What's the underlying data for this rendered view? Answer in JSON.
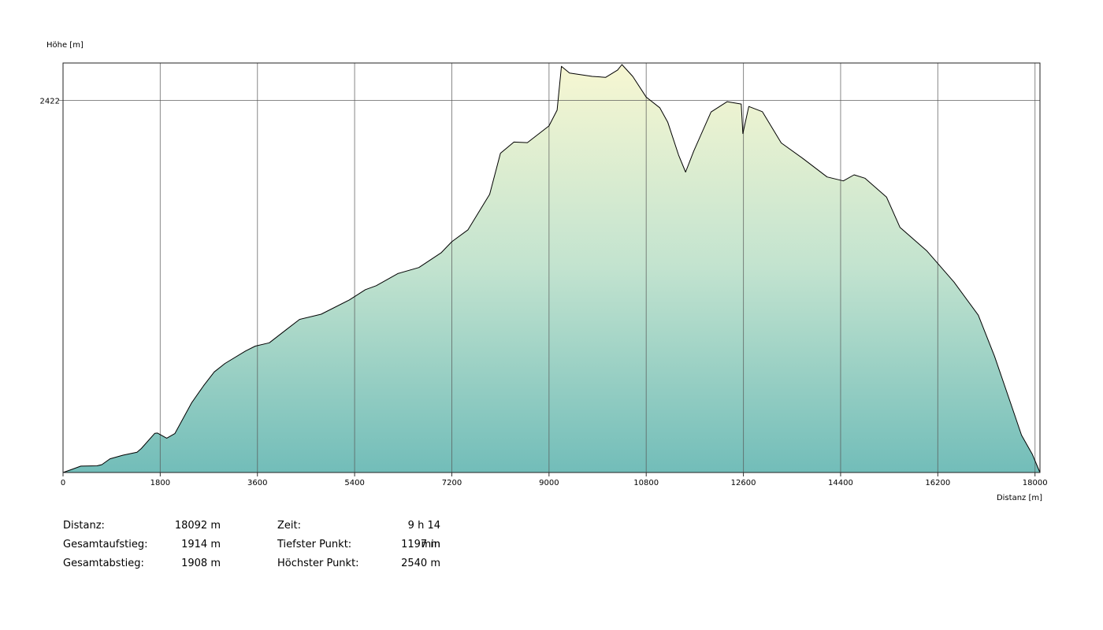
{
  "chart_data": {
    "type": "area",
    "ylabel": "Höhe [m]",
    "xlabel": "Distanz [m]",
    "x_ticks": [
      "0",
      "1800",
      "3600",
      "5400",
      "7200",
      "9000",
      "10800",
      "12600",
      "14400",
      "16200",
      "18000"
    ],
    "y_ticks": [
      "2422"
    ],
    "xlim": [
      0,
      18092
    ],
    "ylim": [
      1197,
      2540
    ],
    "grid": true,
    "colors": {
      "fill_top": "#f7f7d2",
      "fill_bottom": "#72bdb9",
      "line": "#000000",
      "grid": "#555555"
    },
    "points": [
      [
        0,
        1197
      ],
      [
        160,
        1207
      ],
      [
        330,
        1218
      ],
      [
        630,
        1219
      ],
      [
        720,
        1223
      ],
      [
        870,
        1242
      ],
      [
        1110,
        1254
      ],
      [
        1370,
        1264
      ],
      [
        1450,
        1276
      ],
      [
        1700,
        1326
      ],
      [
        1750,
        1327
      ],
      [
        1920,
        1310
      ],
      [
        2070,
        1325
      ],
      [
        2380,
        1426
      ],
      [
        2600,
        1482
      ],
      [
        2800,
        1528
      ],
      [
        3000,
        1556
      ],
      [
        3380,
        1597
      ],
      [
        3560,
        1613
      ],
      [
        3820,
        1624
      ],
      [
        4140,
        1668
      ],
      [
        4380,
        1701
      ],
      [
        4780,
        1718
      ],
      [
        5300,
        1765
      ],
      [
        5600,
        1799
      ],
      [
        5800,
        1812
      ],
      [
        6200,
        1852
      ],
      [
        6590,
        1872
      ],
      [
        7000,
        1920
      ],
      [
        7200,
        1957
      ],
      [
        7500,
        1996
      ],
      [
        7900,
        2113
      ],
      [
        8100,
        2248
      ],
      [
        8350,
        2285
      ],
      [
        8600,
        2283
      ],
      [
        9000,
        2338
      ],
      [
        9150,
        2390
      ],
      [
        9230,
        2534
      ],
      [
        9380,
        2512
      ],
      [
        9800,
        2501
      ],
      [
        10050,
        2498
      ],
      [
        10270,
        2522
      ],
      [
        10350,
        2540
      ],
      [
        10550,
        2501
      ],
      [
        10800,
        2433
      ],
      [
        11050,
        2398
      ],
      [
        11200,
        2350
      ],
      [
        11400,
        2242
      ],
      [
        11530,
        2186
      ],
      [
        11680,
        2255
      ],
      [
        12000,
        2384
      ],
      [
        12300,
        2418
      ],
      [
        12560,
        2410
      ],
      [
        12590,
        2313
      ],
      [
        12700,
        2402
      ],
      [
        12950,
        2385
      ],
      [
        13300,
        2282
      ],
      [
        13700,
        2231
      ],
      [
        14150,
        2170
      ],
      [
        14450,
        2157
      ],
      [
        14650,
        2177
      ],
      [
        14850,
        2166
      ],
      [
        15250,
        2104
      ],
      [
        15500,
        2004
      ],
      [
        16000,
        1926
      ],
      [
        16500,
        1824
      ],
      [
        16950,
        1715
      ],
      [
        17250,
        1580
      ],
      [
        17550,
        1424
      ],
      [
        17750,
        1320
      ],
      [
        17950,
        1257
      ],
      [
        18092,
        1197
      ]
    ]
  },
  "stats": {
    "distance_label": "Distanz:",
    "distance_value": "18092 m",
    "time_label": "Zeit:",
    "time_value": "9 h 14 min",
    "ascent_label": "Gesamtaufstieg:",
    "ascent_value": "1914 m",
    "lowest_label": "Tiefster Punkt:",
    "lowest_value": "1197 m",
    "descent_label": "Gesamtabstieg:",
    "descent_value": "1908 m",
    "highest_label": "Höchster Punkt:",
    "highest_value": "2540 m"
  }
}
